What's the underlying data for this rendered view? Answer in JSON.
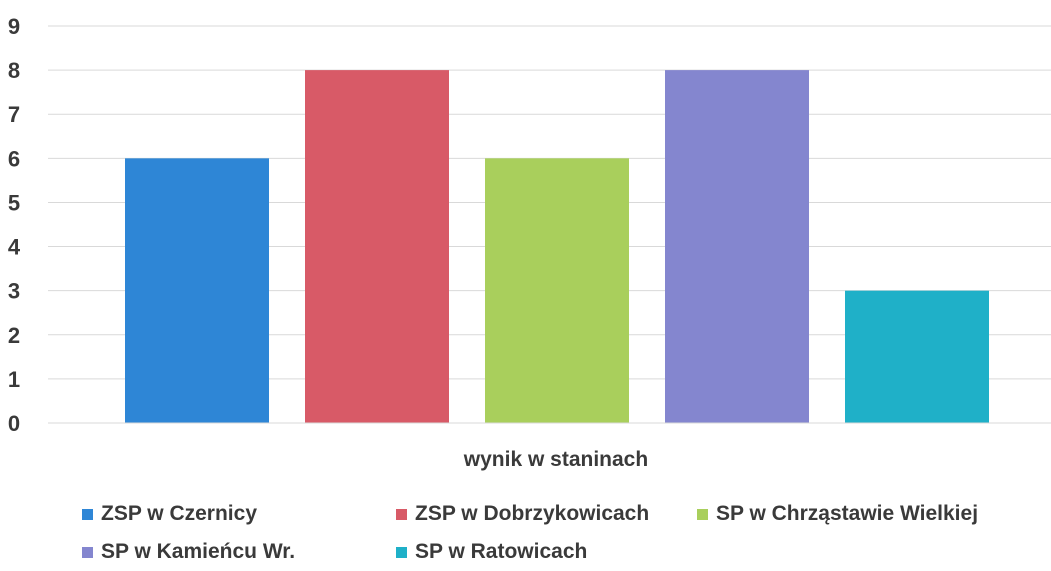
{
  "chart_data": {
    "type": "bar",
    "title": "",
    "xlabel": "wynik w staninach",
    "ylabel": "",
    "ylim": [
      0,
      9
    ],
    "yticks": [
      0,
      1,
      2,
      3,
      4,
      5,
      6,
      7,
      8,
      9
    ],
    "grid": true,
    "legend_position": "bottom",
    "series": [
      {
        "name": "ZSP w Czernicy",
        "value": 6,
        "color": "#2e86d6"
      },
      {
        "name": "ZSP w Dobrzykowicach",
        "value": 8,
        "color": "#d85a67"
      },
      {
        "name": "SP w Chrząstawie Wielkiej",
        "value": 6,
        "color": "#a9cf5c"
      },
      {
        "name": "SP w Kamieńcu Wr.",
        "value": 8,
        "color": "#8486cf"
      },
      {
        "name": "SP w Ratowicach",
        "value": 3,
        "color": "#1fb0c8"
      }
    ]
  }
}
